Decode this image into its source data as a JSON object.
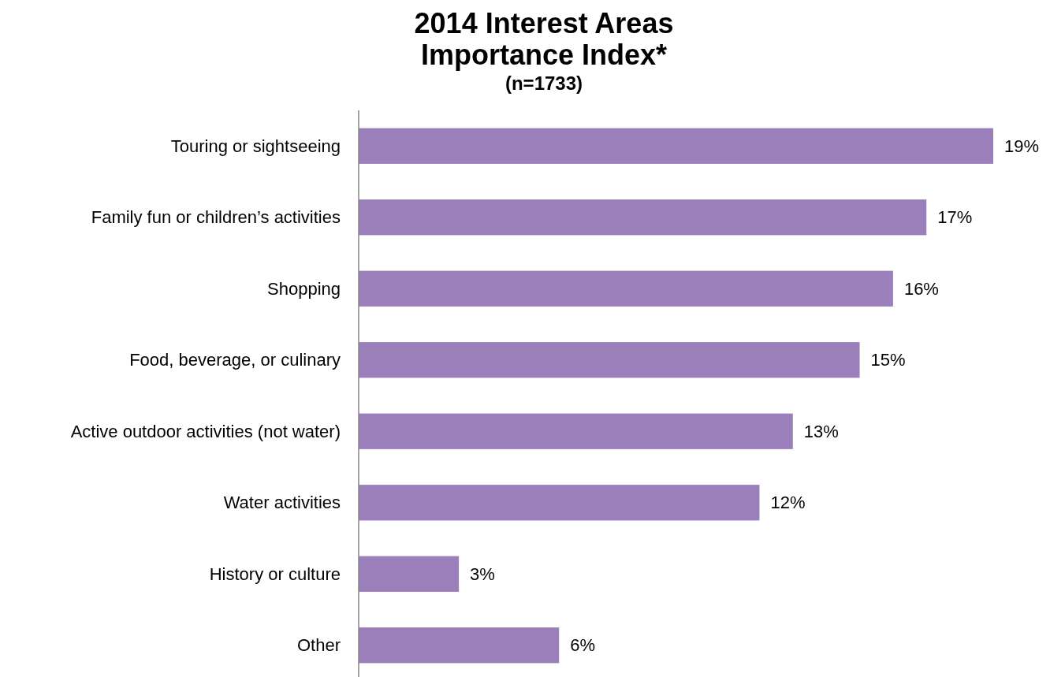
{
  "chart_data": {
    "type": "bar",
    "orientation": "horizontal",
    "title": "2014 Interest Areas\nImportance Index*",
    "subtitle": "(n=1733)",
    "categories": [
      "Touring or sightseeing",
      "Family fun or children’s activities",
      "Shopping",
      "Food, beverage, or culinary",
      "Active outdoor activities (not water)",
      "Water activities",
      "History or culture",
      "Other"
    ],
    "values": [
      19,
      17,
      16,
      15,
      13,
      12,
      3,
      6
    ],
    "value_labels": [
      "19%",
      "17%",
      "16%",
      "15%",
      "13%",
      "12%",
      "3%",
      "6%"
    ],
    "color": "#9b7fba"
  }
}
